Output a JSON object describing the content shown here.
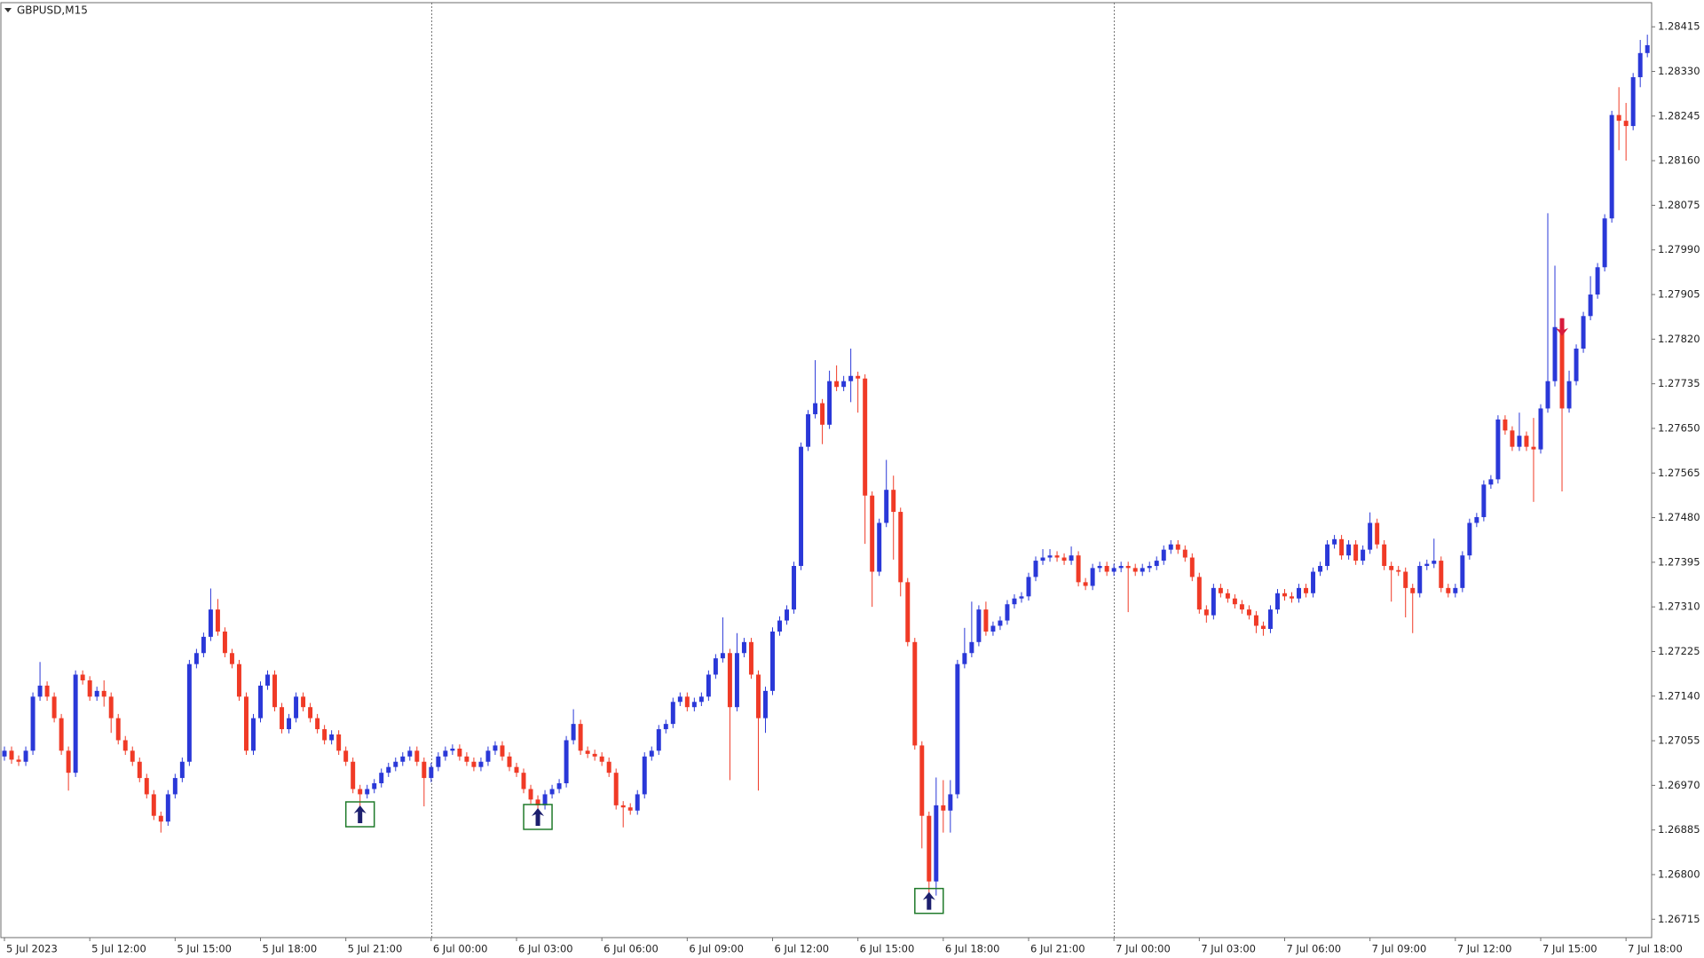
{
  "chart_data": {
    "type": "candlestick",
    "title": "GBPUSD,M15",
    "bull_color": "#2a38d8",
    "bear_color": "#f03a26",
    "xlim": [
      -0.5,
      231.6
    ],
    "ylim": [
      1.2668,
      1.28461
    ],
    "xticks": [
      {
        "value": 0,
        "label": "5 Jul 2023"
      },
      {
        "value": 12,
        "label": "5 Jul 12:00"
      },
      {
        "value": 24,
        "label": "5 Jul 15:00"
      },
      {
        "value": 36,
        "label": "5 Jul 18:00"
      },
      {
        "value": 48,
        "label": "5 Jul 21:00"
      },
      {
        "value": 60,
        "label": "6 Jul 00:00"
      },
      {
        "value": 72,
        "label": "6 Jul 03:00"
      },
      {
        "value": 84,
        "label": "6 Jul 06:00"
      },
      {
        "value": 96,
        "label": "6 Jul 09:00"
      },
      {
        "value": 108,
        "label": "6 Jul 12:00"
      },
      {
        "value": 120,
        "label": "6 Jul 15:00"
      },
      {
        "value": 132,
        "label": "6 Jul 18:00"
      },
      {
        "value": 144,
        "label": "6 Jul 21:00"
      },
      {
        "value": 156,
        "label": "7 Jul 00:00"
      },
      {
        "value": 168,
        "label": "7 Jul 03:00"
      },
      {
        "value": 180,
        "label": "7 Jul 06:00"
      },
      {
        "value": 192,
        "label": "7 Jul 09:00"
      },
      {
        "value": 204,
        "label": "7 Jul 12:00"
      },
      {
        "value": 216,
        "label": "7 Jul 15:00"
      },
      {
        "value": 228,
        "label": "7 Jul 18:00"
      }
    ],
    "yticks": [
      1.28415,
      {
        "value": 1.2833,
        "label": "1.28330"
      },
      1.28245,
      {
        "value": 1.2816,
        "label": "1.28160"
      },
      1.28075,
      {
        "value": 1.2799,
        "label": "1.27990"
      },
      1.27905,
      {
        "value": 1.2782,
        "label": "1.27820"
      },
      1.27735,
      {
        "value": 1.2765,
        "label": "1.27650"
      },
      1.27565,
      {
        "value": 1.2748,
        "label": "1.27480"
      },
      1.27395,
      {
        "value": 1.2731,
        "label": "1.27310"
      },
      1.27225,
      {
        "value": 1.2714,
        "label": "1.27140"
      },
      1.27055,
      {
        "value": 1.2697,
        "label": "1.26970"
      },
      1.26885,
      {
        "value": 1.268,
        "label": "1.26800"
      },
      1.26715
    ],
    "separators": [
      60,
      156
    ],
    "buy_signals": [
      50,
      75,
      130
    ],
    "sell_signals": [
      219
    ],
    "open": [
      1.27025,
      1.27036,
      1.27019,
      1.27015,
      1.27036,
      1.27139,
      1.2716,
      1.27139,
      1.27098,
      1.27036,
      1.26994,
      1.27181,
      1.2717,
      1.27139,
      1.2715,
      1.27139,
      1.27098,
      1.27056,
      1.27036,
      1.27015,
      1.26984,
      1.26953,
      1.26912,
      1.26901,
      1.26953,
      1.26984,
      1.27015,
      1.27201,
      1.27222,
      1.27253,
      1.27305,
      1.27263,
      1.27222,
      1.27201,
      1.27139,
      1.27036,
      1.27098,
      1.2716,
      1.27181,
      1.27119,
      1.27077,
      1.27098,
      1.27139,
      1.27119,
      1.27098,
      1.27077,
      1.27056,
      1.27067,
      1.27036,
      1.27015,
      1.26963,
      1.26953,
      1.26963,
      1.26974,
      1.26994,
      1.27005,
      1.27015,
      1.27025,
      1.27036,
      1.27015,
      1.26984,
      1.27005,
      1.27025,
      1.27036,
      1.2704,
      1.27025,
      1.27015,
      1.27005,
      1.27015,
      1.27036,
      1.27046,
      1.27025,
      1.27005,
      1.26994,
      1.26963,
      1.26943,
      1.26932,
      1.26953,
      1.26963,
      1.26974,
      1.27056,
      1.27087,
      1.27036,
      1.2703,
      1.27025,
      1.27015,
      1.26994,
      1.26932,
      1.26928,
      1.26922,
      1.26953,
      1.27025,
      1.27036,
      1.27077,
      1.27087,
      1.27129,
      1.27139,
      1.27119,
      1.27129,
      1.27139,
      1.27181,
      1.27212,
      1.27222,
      1.27119,
      1.27222,
      1.27243,
      1.27181,
      1.27098,
      1.2715,
      1.27263,
      1.27284,
      1.27305,
      1.27388,
      1.27615,
      1.27677,
      1.27698,
      1.27657,
      1.2774,
      1.27729,
      1.2774,
      1.2775,
      1.27745,
      1.27522,
      1.27377,
      1.2747,
      1.27533,
      1.27491,
      1.27357,
      1.27243,
      1.27046,
      1.26912,
      1.26787,
      1.26932,
      1.26922,
      1.26953,
      1.27201,
      1.27222,
      1.27243,
      1.27305,
      1.27263,
      1.27274,
      1.27284,
      1.27315,
      1.27326,
      1.2733,
      1.27367,
      1.27398,
      1.27404,
      1.27408,
      1.27404,
      1.27398,
      1.27408,
      1.27357,
      1.2735,
      1.27384,
      1.27388,
      1.27377,
      1.27384,
      1.27388,
      1.27384,
      1.27377,
      1.27384,
      1.27388,
      1.27398,
      1.27419,
      1.27429,
      1.27419,
      1.27404,
      1.27367,
      1.27305,
      1.27294,
      1.27346,
      1.27336,
      1.27326,
      1.27315,
      1.27305,
      1.27294,
      1.27274,
      1.27268,
      1.27305,
      1.27336,
      1.2733,
      1.27326,
      1.27346,
      1.27336,
      1.27377,
      1.27388,
      1.27429,
      1.27439,
      1.27408,
      1.27429,
      1.27398,
      1.27419,
      1.2747,
      1.27429,
      1.27388,
      1.2738,
      1.27377,
      1.27346,
      1.27336,
      1.27388,
      1.27392,
      1.27398,
      1.27346,
      1.27336,
      1.27346,
      1.27408,
      1.2747,
      1.27481,
      1.27543,
      1.27553,
      1.27667,
      1.27646,
      1.27615,
      1.27636,
      1.27615,
      1.2761,
      1.27688,
      1.2774,
      1.27843,
      1.27688,
      1.2774,
      1.27802,
      1.27864,
      1.27905,
      1.27957,
      1.2805,
      1.28247,
      1.28236,
      1.28226,
      1.28319,
      1.28365
    ],
    "high": [
      1.27044,
      1.27044,
      1.27027,
      1.27044,
      1.27147,
      1.27205,
      1.27168,
      1.27147,
      1.27106,
      1.27044,
      1.27189,
      1.27189,
      1.27178,
      1.27158,
      1.2717,
      1.27147,
      1.27106,
      1.27064,
      1.27044,
      1.27023,
      1.26992,
      1.26961,
      1.2692,
      1.26961,
      1.26992,
      1.27023,
      1.27209,
      1.2723,
      1.27261,
      1.27345,
      1.27325,
      1.27271,
      1.2723,
      1.27209,
      1.27147,
      1.27106,
      1.27168,
      1.27189,
      1.27189,
      1.27127,
      1.27106,
      1.27147,
      1.27147,
      1.27127,
      1.27106,
      1.27085,
      1.27075,
      1.27075,
      1.27044,
      1.27023,
      1.26971,
      1.26971,
      1.26982,
      1.27002,
      1.27013,
      1.27023,
      1.27033,
      1.27044,
      1.27044,
      1.27023,
      1.27013,
      1.27033,
      1.27044,
      1.27048,
      1.27048,
      1.27033,
      1.27023,
      1.27023,
      1.27044,
      1.27054,
      1.27054,
      1.27033,
      1.27013,
      1.27002,
      1.26971,
      1.26951,
      1.26961,
      1.26971,
      1.26982,
      1.27064,
      1.27115,
      1.27095,
      1.27044,
      1.27038,
      1.27033,
      1.27023,
      1.27002,
      1.2694,
      1.26936,
      1.26961,
      1.27033,
      1.27044,
      1.27085,
      1.27095,
      1.27137,
      1.27147,
      1.27147,
      1.27137,
      1.27147,
      1.27189,
      1.2722,
      1.2729,
      1.2723,
      1.2726,
      1.27251,
      1.27251,
      1.27189,
      1.27158,
      1.27271,
      1.27292,
      1.27313,
      1.27396,
      1.27623,
      1.27685,
      1.2778,
      1.27706,
      1.2776,
      1.2777,
      1.2775,
      1.27802,
      1.27758,
      1.27753,
      1.2753,
      1.27478,
      1.2759,
      1.2756,
      1.27499,
      1.27365,
      1.27251,
      1.27054,
      1.2692,
      1.26985,
      1.2698,
      1.2698,
      1.27209,
      1.2727,
      1.2732,
      1.27313,
      1.2732,
      1.27282,
      1.27292,
      1.27323,
      1.27334,
      1.27338,
      1.27375,
      1.27406,
      1.2742,
      1.2742,
      1.27416,
      1.27412,
      1.27425,
      1.27416,
      1.27365,
      1.27392,
      1.27396,
      1.27396,
      1.27392,
      1.27396,
      1.27396,
      1.27392,
      1.27392,
      1.27396,
      1.27406,
      1.27427,
      1.27437,
      1.27437,
      1.27427,
      1.27412,
      1.27375,
      1.27313,
      1.27354,
      1.27354,
      1.27344,
      1.27334,
      1.27323,
      1.27313,
      1.27302,
      1.27282,
      1.27313,
      1.27344,
      1.27344,
      1.27338,
      1.27354,
      1.27354,
      1.27385,
      1.27396,
      1.27437,
      1.27447,
      1.27447,
      1.27437,
      1.27437,
      1.27427,
      1.2749,
      1.27478,
      1.27437,
      1.27396,
      1.27388,
      1.27385,
      1.27354,
      1.27396,
      1.274,
      1.2744,
      1.27406,
      1.27354,
      1.27354,
      1.27416,
      1.27478,
      1.27489,
      1.27551,
      1.27561,
      1.27675,
      1.27675,
      1.27654,
      1.2768,
      1.27644,
      1.2767,
      1.27696,
      1.2806,
      1.2796,
      1.2786,
      1.2776,
      1.2781,
      1.27872,
      1.2794,
      1.27965,
      1.28058,
      1.28255,
      1.283,
      1.2827,
      1.28327,
      1.2839,
      1.284
    ],
    "low": [
      1.27017,
      1.27011,
      1.27007,
      1.27007,
      1.27028,
      1.27131,
      1.27131,
      1.2709,
      1.27028,
      1.2696,
      1.26986,
      1.27162,
      1.27131,
      1.27131,
      1.2712,
      1.2707,
      1.27048,
      1.27028,
      1.27007,
      1.26976,
      1.26945,
      1.26904,
      1.2688,
      1.26893,
      1.26945,
      1.26976,
      1.27007,
      1.27193,
      1.27214,
      1.27245,
      1.27255,
      1.27214,
      1.27193,
      1.27131,
      1.27028,
      1.27028,
      1.2709,
      1.27152,
      1.27111,
      1.27069,
      1.27069,
      1.2709,
      1.27111,
      1.2709,
      1.27069,
      1.27048,
      1.27048,
      1.27028,
      1.27007,
      1.26955,
      1.26925,
      1.26945,
      1.26955,
      1.26966,
      1.26986,
      1.26997,
      1.27007,
      1.27017,
      1.27007,
      1.2693,
      1.26976,
      1.26997,
      1.27017,
      1.27028,
      1.27017,
      1.27007,
      1.26997,
      1.26997,
      1.27007,
      1.27028,
      1.27017,
      1.26997,
      1.26986,
      1.26955,
      1.26935,
      1.2692,
      1.26924,
      1.26945,
      1.26955,
      1.26966,
      1.27048,
      1.27028,
      1.27022,
      1.27017,
      1.27007,
      1.26986,
      1.26924,
      1.2689,
      1.26914,
      1.26914,
      1.26945,
      1.27017,
      1.27028,
      1.27069,
      1.27079,
      1.27121,
      1.27111,
      1.27111,
      1.27121,
      1.27131,
      1.27173,
      1.27204,
      1.2698,
      1.27111,
      1.27214,
      1.27173,
      1.2696,
      1.2707,
      1.27142,
      1.27255,
      1.27276,
      1.27297,
      1.2738,
      1.27607,
      1.27669,
      1.2762,
      1.27649,
      1.27721,
      1.27721,
      1.277,
      1.2768,
      1.2743,
      1.2731,
      1.27369,
      1.27462,
      1.274,
      1.2733,
      1.27235,
      1.27038,
      1.2685,
      1.2676,
      1.2676,
      1.2688,
      1.2688,
      1.26945,
      1.27193,
      1.27214,
      1.27235,
      1.27255,
      1.27255,
      1.27266,
      1.27276,
      1.27307,
      1.27318,
      1.27322,
      1.27359,
      1.2739,
      1.27396,
      1.27396,
      1.2739,
      1.2739,
      1.27349,
      1.27342,
      1.27342,
      1.27376,
      1.27369,
      1.27369,
      1.27376,
      1.273,
      1.27369,
      1.27369,
      1.27376,
      1.2738,
      1.2739,
      1.27411,
      1.27411,
      1.27396,
      1.27359,
      1.27297,
      1.2728,
      1.27286,
      1.27328,
      1.27318,
      1.27307,
      1.27297,
      1.27286,
      1.2726,
      1.27255,
      1.2726,
      1.27297,
      1.27322,
      1.27318,
      1.27318,
      1.27328,
      1.27328,
      1.27369,
      1.2738,
      1.27421,
      1.274,
      1.274,
      1.2739,
      1.2739,
      1.27411,
      1.27421,
      1.2738,
      1.2732,
      1.27369,
      1.2729,
      1.2726,
      1.27328,
      1.2738,
      1.27384,
      1.27338,
      1.27328,
      1.27328,
      1.27338,
      1.274,
      1.27462,
      1.27473,
      1.27535,
      1.27545,
      1.27638,
      1.27607,
      1.27607,
      1.27607,
      1.2751,
      1.27602,
      1.2768,
      1.2773,
      1.2753,
      1.2768,
      1.27732,
      1.27794,
      1.27856,
      1.27897,
      1.27949,
      1.28042,
      1.2818,
      1.2816,
      1.28218,
      1.283,
      1.28357
    ],
    "close": [
      1.27036,
      1.27019,
      1.27015,
      1.27036,
      1.27139,
      1.2716,
      1.27139,
      1.27098,
      1.27036,
      1.26994,
      1.27181,
      1.2717,
      1.27139,
      1.2715,
      1.27139,
      1.27098,
      1.27056,
      1.27036,
      1.27015,
      1.26984,
      1.26953,
      1.26912,
      1.26901,
      1.26953,
      1.26984,
      1.27015,
      1.27201,
      1.27222,
      1.27253,
      1.27305,
      1.27263,
      1.27222,
      1.27201,
      1.27139,
      1.27036,
      1.27098,
      1.2716,
      1.27181,
      1.27119,
      1.27077,
      1.27098,
      1.27139,
      1.27119,
      1.27098,
      1.27077,
      1.27056,
      1.27067,
      1.27036,
      1.27015,
      1.26963,
      1.26953,
      1.26963,
      1.26974,
      1.26994,
      1.27005,
      1.27015,
      1.27025,
      1.27036,
      1.27015,
      1.26984,
      1.27005,
      1.27025,
      1.27036,
      1.2704,
      1.27025,
      1.27015,
      1.27005,
      1.27015,
      1.27036,
      1.27046,
      1.27025,
      1.27005,
      1.26994,
      1.26963,
      1.26943,
      1.26932,
      1.26953,
      1.26963,
      1.26974,
      1.27056,
      1.27087,
      1.27036,
      1.2703,
      1.27025,
      1.27015,
      1.26994,
      1.26932,
      1.26928,
      1.26922,
      1.26953,
      1.27025,
      1.27036,
      1.27077,
      1.27087,
      1.27129,
      1.27139,
      1.27119,
      1.27129,
      1.27139,
      1.27181,
      1.27212,
      1.27222,
      1.27119,
      1.27222,
      1.27243,
      1.27181,
      1.27098,
      1.2715,
      1.27263,
      1.27284,
      1.27305,
      1.27388,
      1.27615,
      1.27677,
      1.27698,
      1.27657,
      1.2774,
      1.27729,
      1.2774,
      1.2775,
      1.27745,
      1.27522,
      1.27377,
      1.2747,
      1.27533,
      1.27491,
      1.27357,
      1.27243,
      1.27046,
      1.26912,
      1.26787,
      1.26932,
      1.26922,
      1.26953,
      1.27201,
      1.27222,
      1.27243,
      1.27305,
      1.27263,
      1.27274,
      1.27284,
      1.27315,
      1.27326,
      1.2733,
      1.27367,
      1.27398,
      1.27404,
      1.27408,
      1.27404,
      1.27398,
      1.27408,
      1.27357,
      1.2735,
      1.27384,
      1.27388,
      1.27377,
      1.27384,
      1.27388,
      1.27384,
      1.27377,
      1.27384,
      1.27388,
      1.27398,
      1.27419,
      1.27429,
      1.27419,
      1.27404,
      1.27367,
      1.27305,
      1.27294,
      1.27346,
      1.27336,
      1.27326,
      1.27315,
      1.27305,
      1.27294,
      1.27274,
      1.27268,
      1.27305,
      1.27336,
      1.2733,
      1.27326,
      1.27346,
      1.27336,
      1.27377,
      1.27388,
      1.27429,
      1.27439,
      1.27408,
      1.27429,
      1.27398,
      1.27419,
      1.2747,
      1.27429,
      1.27388,
      1.2738,
      1.27377,
      1.27346,
      1.27336,
      1.27388,
      1.27392,
      1.27398,
      1.27346,
      1.27336,
      1.27346,
      1.27408,
      1.2747,
      1.27481,
      1.27543,
      1.27553,
      1.27667,
      1.27646,
      1.27615,
      1.27636,
      1.27615,
      1.2761,
      1.27688,
      1.2774,
      1.27843,
      1.27688,
      1.2774,
      1.27802,
      1.27864,
      1.27905,
      1.27957,
      1.2805,
      1.28247,
      1.28236,
      1.28226,
      1.28319,
      1.28365,
      1.2838
    ]
  }
}
